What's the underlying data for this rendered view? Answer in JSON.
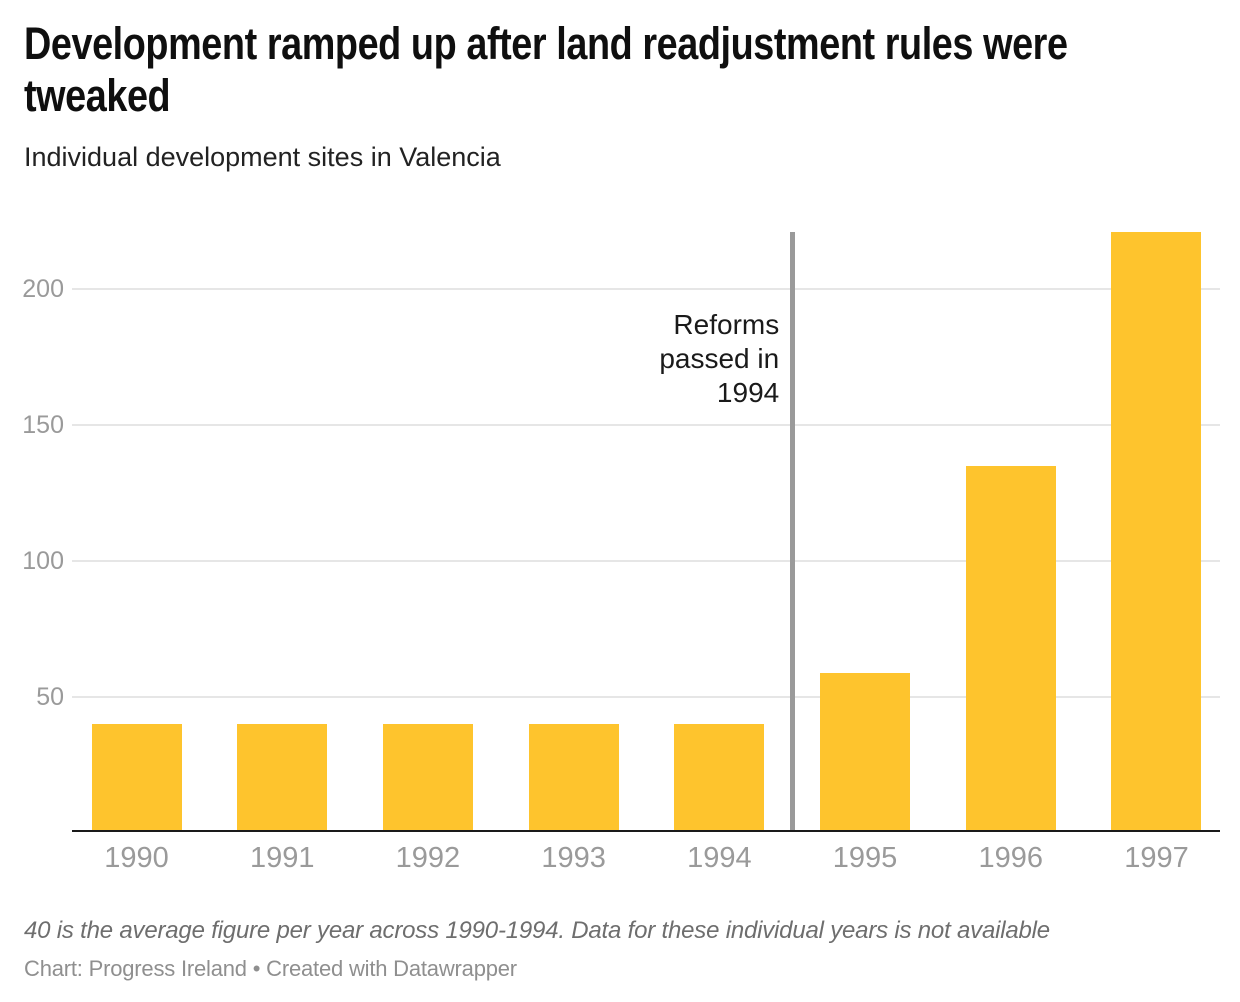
{
  "header": {
    "title_lines": [
      "Development ramped up after land readjustment rules were",
      "tweaked"
    ],
    "subtitle": "Individual development sites in Valencia"
  },
  "chart_data": {
    "type": "bar",
    "title": "Development ramped up after land readjustment rules were tweaked",
    "subtitle": "Individual development sites in Valencia",
    "categories": [
      "1990",
      "1991",
      "1992",
      "1993",
      "1994",
      "1995",
      "1996",
      "1997"
    ],
    "values": [
      40,
      40,
      40,
      40,
      40,
      59,
      135,
      221
    ],
    "ylim": [
      0,
      221
    ],
    "yticks": [
      50,
      100,
      150,
      200
    ],
    "grid": true,
    "legend": "none",
    "bar_color": "#fec42d",
    "gridline_color": "#e6e6e6",
    "axis_label_color": "#9a9a9a",
    "annotation": {
      "text": "Reforms passed in 1994",
      "lines": [
        "Reforms",
        "passed in",
        "1994"
      ],
      "line_between": [
        "1994",
        "1995"
      ],
      "line_color": "#9a9a9a"
    }
  },
  "footer": {
    "footnote": "40 is the average figure per year across 1990-1994. Data for these individual years is not available",
    "byline": "Chart: Progress Ireland • Created with Datawrapper"
  }
}
